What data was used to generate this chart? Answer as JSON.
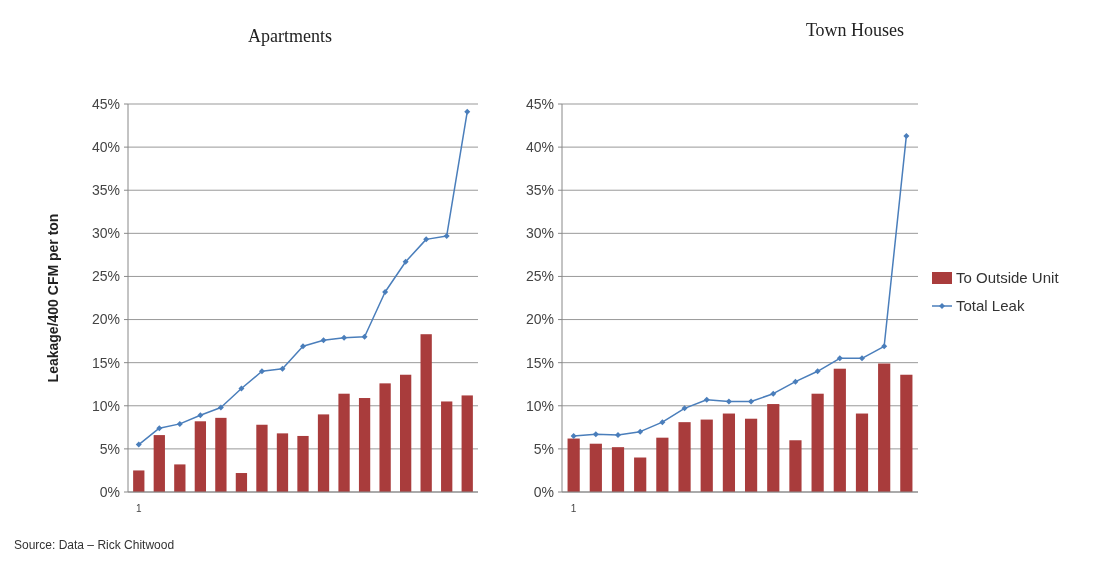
{
  "chart_data": [
    {
      "type": "bar",
      "title": "Apartments",
      "ylabel": "Leakage/400 CFM per ton",
      "categories": [
        "1",
        null,
        null,
        null,
        null,
        null,
        null,
        null,
        null,
        null,
        null,
        null,
        null,
        null,
        null,
        null,
        null
      ],
      "series": [
        {
          "color": "#a93c3c",
          "values": [
            2.5,
            6.6,
            3.2,
            8.2,
            8.6,
            2.2,
            7.8,
            6.8,
            6.5,
            9.0,
            11.4,
            10.9,
            12.6,
            13.6,
            18.3,
            10.5,
            11.2
          ]
        },
        {
          "type": "line",
          "color": "#4a7ebb",
          "values": [
            5.5,
            7.4,
            7.9,
            8.9,
            9.8,
            12.0,
            14.0,
            14.3,
            16.9,
            17.6,
            17.9,
            18.0,
            23.2,
            26.7,
            29.3,
            29.7,
            44.1
          ]
        }
      ],
      "ylim": [
        0,
        45
      ],
      "yticks": [
        {
          "value": 0,
          "label": "0%"
        },
        {
          "value": 5,
          "label": "5%"
        },
        {
          "value": 10,
          "label": "10%"
        },
        {
          "value": 15,
          "label": "15%"
        },
        {
          "value": 20,
          "label": "20%"
        },
        {
          "value": 25,
          "label": "25%"
        },
        {
          "value": 30,
          "label": "30%"
        },
        {
          "value": 35,
          "label": "35%"
        },
        {
          "value": 40,
          "label": "40%"
        },
        {
          "value": 45,
          "label": "45%"
        }
      ],
      "grid": "y",
      "marker": "diamond",
      "legend": false,
      "annotations": [
        "Source: Data – Rick Chitwood"
      ]
    },
    {
      "type": "bar",
      "title": "Town Houses",
      "categories": [
        "1",
        null,
        null,
        null,
        null,
        null,
        null,
        null,
        null,
        null,
        null,
        null,
        null,
        null,
        null,
        null
      ],
      "series": [
        {
          "name": "To Outside Unit",
          "color": "#a93c3c",
          "values": [
            6.2,
            5.6,
            5.2,
            4.0,
            6.3,
            8.1,
            8.4,
            9.1,
            8.5,
            10.2,
            6.0,
            11.4,
            14.3,
            9.1,
            14.9,
            13.6
          ]
        },
        {
          "name": "Total Leak",
          "type": "line",
          "color": "#4a7ebb",
          "values": [
            6.5,
            6.7,
            6.6,
            7.0,
            8.1,
            9.7,
            10.7,
            10.5,
            10.5,
            11.4,
            12.8,
            14.0,
            15.5,
            15.5,
            16.9,
            41.3
          ]
        }
      ],
      "ylim": [
        0,
        45
      ],
      "yticks": [
        {
          "value": 0,
          "label": "0%"
        },
        {
          "value": 5,
          "label": "5%"
        },
        {
          "value": 10,
          "label": "10%"
        },
        {
          "value": 15,
          "label": "15%"
        },
        {
          "value": 20,
          "label": "20%"
        },
        {
          "value": 25,
          "label": "25%"
        },
        {
          "value": 30,
          "label": "30%"
        },
        {
          "value": 35,
          "label": "35%"
        },
        {
          "value": 40,
          "label": "40%"
        },
        {
          "value": 45,
          "label": "45%"
        }
      ],
      "grid": "y",
      "marker": "diamond",
      "legend": "right"
    }
  ]
}
